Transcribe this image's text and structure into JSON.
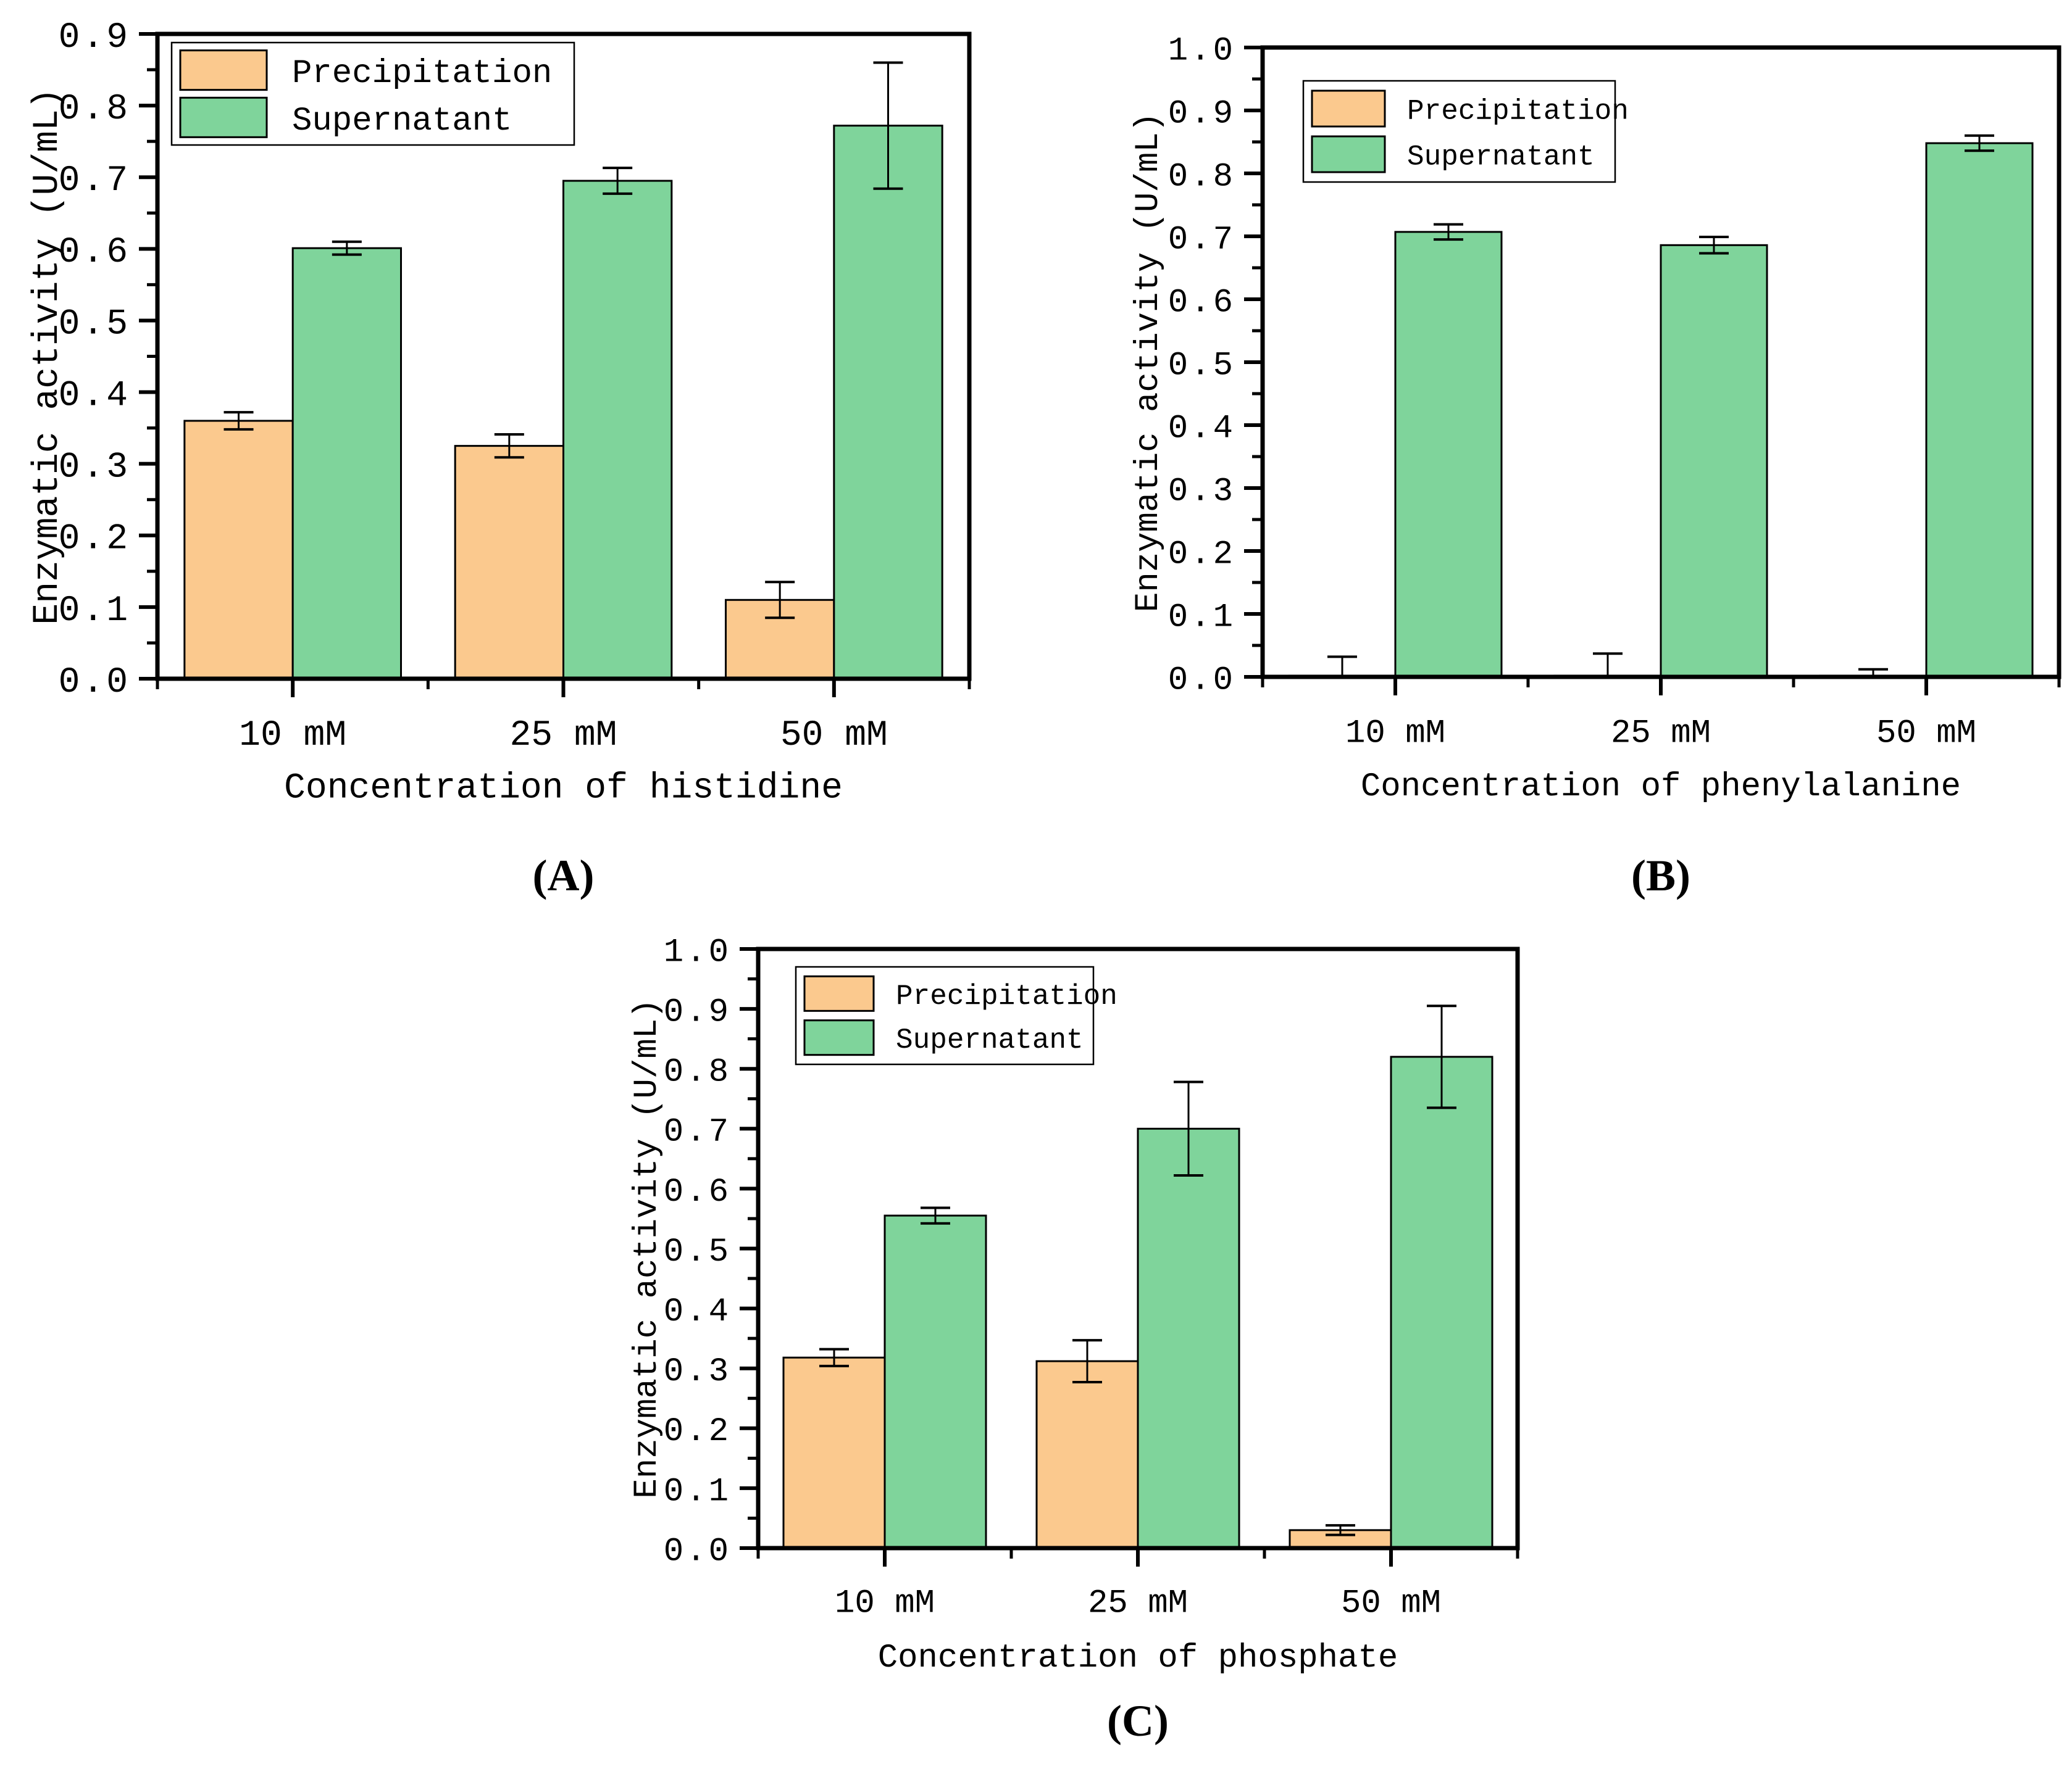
{
  "figure": {
    "background": "#ffffff",
    "text_color": "#000000",
    "colors": {
      "precipitation": "#FBC98E",
      "supernatant": "#7FD49B",
      "bar_edge": "#000000",
      "frame": "#000000"
    },
    "captions": {
      "a": "(A)",
      "b": "(B)",
      "c": "(C)"
    },
    "legend_labels": [
      "Precipitation",
      "Supernatant"
    ]
  },
  "chart_data": [
    {
      "id": "histidine",
      "type": "bar",
      "title": "",
      "xlabel": "Concentration of histidine",
      "ylabel": "Enzymatic activity (U/mL)",
      "categories": [
        "10 mM",
        "25 mM",
        "50 mM"
      ],
      "ylim": [
        0,
        0.9
      ],
      "ytick_step": 0.1,
      "yminor_step": 0.05,
      "ytick_labels": [
        "0.0",
        "0.1",
        "0.2",
        "0.3",
        "0.4",
        "0.5",
        "0.6",
        "0.7",
        "0.8",
        "0.9"
      ],
      "grid": false,
      "legend_position": "top-left",
      "series": [
        {
          "name": "Precipitation",
          "values": [
            0.36,
            0.325,
            0.11
          ],
          "errors": [
            0.012,
            0.016,
            0.025
          ]
        },
        {
          "name": "Supernatant",
          "values": [
            0.601,
            0.695,
            0.772
          ],
          "errors": [
            0.009,
            0.018,
            0.088
          ]
        }
      ],
      "caption": "(A)"
    },
    {
      "id": "phenylalanine",
      "type": "bar",
      "title": "",
      "xlabel": "Concentration of phenylalanine",
      "ylabel": "Enzymatic activity (U/mL)",
      "categories": [
        "10 mM",
        "25 mM",
        "50 mM"
      ],
      "ylim": [
        0,
        1.0
      ],
      "ytick_step": 0.1,
      "yminor_step": 0.05,
      "ytick_labels": [
        "0.0",
        "0.1",
        "0.2",
        "0.3",
        "0.4",
        "0.5",
        "0.6",
        "0.7",
        "0.8",
        "0.9",
        "1.0"
      ],
      "grid": false,
      "legend_position": "top-left",
      "series": [
        {
          "name": "Precipitation",
          "values": [
            0.002,
            0.002,
            0.002
          ],
          "errors": [
            0.03,
            0.035,
            0.01
          ]
        },
        {
          "name": "Supernatant",
          "values": [
            0.707,
            0.686,
            0.848
          ],
          "errors": [
            0.012,
            0.013,
            0.012
          ]
        }
      ],
      "caption": "(B)"
    },
    {
      "id": "phosphate",
      "type": "bar",
      "title": "",
      "xlabel": "Concentration of phosphate",
      "ylabel": "Enzymatic activity (U/mL)",
      "categories": [
        "10 mM",
        "25 mM",
        "50 mM"
      ],
      "ylim": [
        0,
        1.0
      ],
      "ytick_step": 0.1,
      "yminor_step": 0.05,
      "ytick_labels": [
        "0.0",
        "0.1",
        "0.2",
        "0.3",
        "0.4",
        "0.5",
        "0.6",
        "0.7",
        "0.8",
        "0.9",
        "1.0"
      ],
      "grid": false,
      "legend_position": "top-left",
      "series": [
        {
          "name": "Precipitation",
          "values": [
            0.318,
            0.312,
            0.03
          ],
          "errors": [
            0.014,
            0.035,
            0.008
          ]
        },
        {
          "name": "Supernatant",
          "values": [
            0.555,
            0.7,
            0.82
          ],
          "errors": [
            0.013,
            0.078,
            0.085
          ]
        }
      ],
      "caption": "(C)"
    }
  ]
}
